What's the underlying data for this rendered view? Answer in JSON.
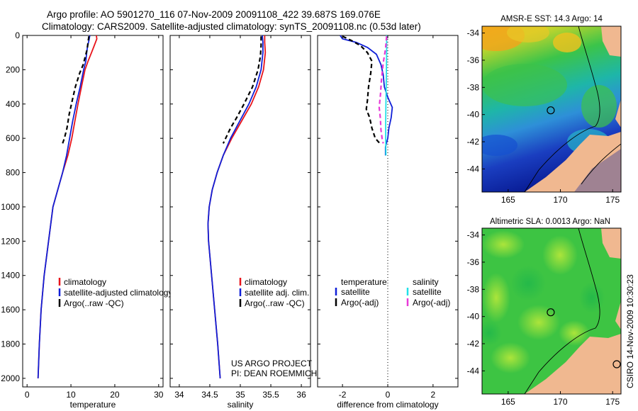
{
  "header": {
    "line1": "Argo profile: AO 5901270_116 07-Nov-2009 20091108_422 39.687S 169.076E",
    "line2": "Climatology: CARS2009. Satellite-adjusted climatology: synTS_20091108.nc (0.53d later)"
  },
  "credits": {
    "project": "US ARGO PROJECT",
    "pi": "PI: DEAN ROEMMICH",
    "timestamp": "CSIRO 14-Nov-2009 10:30:23"
  },
  "chart_data": [
    {
      "type": "line",
      "name": "temperature-profile",
      "xlabel": "temperature",
      "ylabel": "",
      "xlim": [
        -1,
        31
      ],
      "ylim": [
        2050,
        0
      ],
      "xticks": [
        "0",
        "10",
        "20",
        "30"
      ],
      "xtick_values": [
        0,
        10,
        20,
        30
      ],
      "yticks": [
        "0",
        "200",
        "400",
        "600",
        "800",
        "1000",
        "1200",
        "1400",
        "1600",
        "1800",
        "2000"
      ],
      "ytick_values": [
        0,
        200,
        400,
        600,
        800,
        1000,
        1200,
        1400,
        1600,
        1800,
        2000
      ],
      "legend": [
        "climatology",
        "satellite-adjusted climatology",
        "Argo(..raw -QC)"
      ],
      "series": [
        {
          "name": "climatology",
          "color": "#e8141b",
          "dash": false,
          "points": [
            [
              15.8,
              0
            ],
            [
              15.9,
              20
            ],
            [
              15.3,
              60
            ],
            [
              14.7,
              100
            ],
            [
              13.9,
              150
            ],
            [
              13.2,
              200
            ],
            [
              12.4,
              300
            ],
            [
              11.6,
              400
            ],
            [
              10.9,
              500
            ],
            [
              10.2,
              600
            ],
            [
              9.3,
              700
            ],
            [
              8.1,
              800
            ],
            [
              7.0,
              900
            ],
            [
              5.9,
              1000
            ],
            [
              4.9,
              1200
            ],
            [
              3.9,
              1400
            ],
            [
              3.2,
              1600
            ],
            [
              2.8,
              1800
            ],
            [
              2.5,
              2000
            ]
          ]
        },
        {
          "name": "satellite-adjusted climatology",
          "color": "#1020d8",
          "dash": false,
          "points": [
            [
              14.3,
              0
            ],
            [
              14.1,
              30
            ],
            [
              13.8,
              60
            ],
            [
              13.6,
              100
            ],
            [
              13.4,
              150
            ],
            [
              12.9,
              200
            ],
            [
              12.1,
              300
            ],
            [
              11.2,
              400
            ],
            [
              10.4,
              500
            ],
            [
              9.7,
              600
            ],
            [
              9.0,
              700
            ],
            [
              8.1,
              800
            ],
            [
              7.0,
              900
            ],
            [
              5.9,
              1000
            ],
            [
              4.9,
              1200
            ],
            [
              3.9,
              1400
            ],
            [
              3.2,
              1600
            ],
            [
              2.8,
              1800
            ],
            [
              2.5,
              2000
            ]
          ]
        },
        {
          "name": "Argo(..raw -QC)",
          "color": "#000000",
          "dash": true,
          "points": [
            [
              14.1,
              5
            ],
            [
              13.9,
              40
            ],
            [
              13.7,
              80
            ],
            [
              13.3,
              120
            ],
            [
              12.8,
              170
            ],
            [
              12.0,
              220
            ],
            [
              11.0,
              300
            ],
            [
              10.3,
              380
            ],
            [
              9.6,
              460
            ],
            [
              9.1,
              540
            ],
            [
              8.5,
              600
            ],
            [
              8.1,
              630
            ]
          ]
        }
      ]
    },
    {
      "type": "line",
      "name": "salinity-profile",
      "xlabel": "salinity",
      "xlim": [
        33.85,
        36.15
      ],
      "ylim": [
        2050,
        0
      ],
      "xticks": [
        "34",
        "34.5",
        "35",
        "35.5",
        "36"
      ],
      "xtick_values": [
        34,
        34.5,
        35,
        35.5,
        36
      ],
      "legend": [
        "climatology",
        "satellite adj. clim.",
        "Argo(..raw -QC)"
      ],
      "series": [
        {
          "name": "climatology",
          "color": "#e8141b",
          "dash": false,
          "points": [
            [
              35.4,
              0
            ],
            [
              35.4,
              40
            ],
            [
              35.41,
              100
            ],
            [
              35.38,
              200
            ],
            [
              35.3,
              300
            ],
            [
              35.18,
              400
            ],
            [
              35.02,
              500
            ],
            [
              34.86,
              600
            ],
            [
              34.72,
              700
            ],
            [
              34.62,
              800
            ],
            [
              34.54,
              900
            ],
            [
              34.49,
              1000
            ],
            [
              34.47,
              1100
            ],
            [
              34.48,
              1200
            ],
            [
              34.53,
              1400
            ],
            [
              34.58,
              1600
            ],
            [
              34.63,
              1800
            ],
            [
              34.67,
              2000
            ]
          ]
        },
        {
          "name": "satellite adj. clim.",
          "color": "#1020d8",
          "dash": false,
          "points": [
            [
              35.36,
              0
            ],
            [
              35.37,
              40
            ],
            [
              35.37,
              100
            ],
            [
              35.34,
              200
            ],
            [
              35.26,
              300
            ],
            [
              35.14,
              400
            ],
            [
              34.99,
              500
            ],
            [
              34.84,
              600
            ],
            [
              34.72,
              700
            ],
            [
              34.62,
              800
            ],
            [
              34.54,
              900
            ],
            [
              34.49,
              1000
            ],
            [
              34.47,
              1100
            ],
            [
              34.48,
              1200
            ],
            [
              34.53,
              1400
            ],
            [
              34.58,
              1600
            ],
            [
              34.63,
              1800
            ],
            [
              34.67,
              2000
            ]
          ]
        },
        {
          "name": "Argo(..raw -QC)",
          "color": "#000000",
          "dash": true,
          "points": [
            [
              35.34,
              5
            ],
            [
              35.34,
              60
            ],
            [
              35.33,
              120
            ],
            [
              35.29,
              200
            ],
            [
              35.2,
              300
            ],
            [
              35.06,
              400
            ],
            [
              34.94,
              480
            ],
            [
              34.84,
              540
            ],
            [
              34.76,
              600
            ],
            [
              34.72,
              630
            ]
          ]
        }
      ]
    },
    {
      "type": "line",
      "name": "difference-from-climatology",
      "xlabel": "difference from climatology",
      "xlim": [
        -3.1,
        3.1
      ],
      "ylim": [
        2050,
        0
      ],
      "xticks": [
        "-2",
        "0",
        "2"
      ],
      "xtick_values": [
        -2,
        0,
        2
      ],
      "legend_groups": [
        {
          "heading": "temperature",
          "items": [
            "satellite",
            "Argo(-adj)"
          ]
        },
        {
          "heading": "salinity",
          "items": [
            "satellite",
            "Argo(-adj)"
          ]
        }
      ],
      "series": [
        {
          "name": "temperature satellite",
          "color": "#1020d8",
          "dash": false,
          "points": [
            [
              -2.1,
              0
            ],
            [
              -2.0,
              20
            ],
            [
              -1.4,
              40
            ],
            [
              -0.9,
              70
            ],
            [
              -0.5,
              110
            ],
            [
              -0.3,
              170
            ],
            [
              -0.2,
              230
            ],
            [
              -0.15,
              300
            ],
            [
              0.0,
              360
            ],
            [
              0.2,
              420
            ],
            [
              0.15,
              480
            ],
            [
              0.05,
              540
            ],
            [
              0.0,
              600
            ],
            [
              -0.1,
              650
            ],
            [
              -0.1,
              700
            ]
          ]
        },
        {
          "name": "temperature Argo(-adj)",
          "color": "#000000",
          "dash": true,
          "points": [
            [
              -2.0,
              5
            ],
            [
              -1.6,
              30
            ],
            [
              -1.2,
              60
            ],
            [
              -0.9,
              100
            ],
            [
              -0.7,
              150
            ],
            [
              -0.75,
              220
            ],
            [
              -0.85,
              300
            ],
            [
              -0.9,
              380
            ],
            [
              -0.95,
              430
            ],
            [
              -0.8,
              480
            ],
            [
              -0.7,
              540
            ],
            [
              -0.55,
              600
            ],
            [
              -0.35,
              630
            ]
          ]
        },
        {
          "name": "salinity satellite",
          "color": "#22e0e8",
          "dash": false,
          "points": [
            [
              -0.05,
              0
            ],
            [
              -0.05,
              100
            ],
            [
              -0.06,
              200
            ],
            [
              -0.07,
              300
            ],
            [
              -0.08,
              400
            ],
            [
              -0.09,
              500
            ],
            [
              -0.09,
              600
            ],
            [
              -0.08,
              700
            ]
          ]
        },
        {
          "name": "salinity Argo(-adj)",
          "color": "#e83ad8",
          "dash": true,
          "points": [
            [
              -0.05,
              5
            ],
            [
              -0.1,
              80
            ],
            [
              -0.2,
              160
            ],
            [
              -0.28,
              260
            ],
            [
              -0.32,
              340
            ],
            [
              -0.38,
              420
            ],
            [
              -0.33,
              480
            ],
            [
              -0.3,
              550
            ],
            [
              -0.25,
              600
            ],
            [
              -0.2,
              630
            ]
          ]
        }
      ]
    },
    {
      "type": "heatmap",
      "name": "amsr-sst-map",
      "title": "AMSR-E SST: 14.3 Argo: 14",
      "xlim": [
        162.5,
        175.8
      ],
      "ylim": [
        -45.7,
        -33.5
      ],
      "xticks": [
        "165",
        "170",
        "175"
      ],
      "xtick_values": [
        165,
        170,
        175
      ],
      "yticks": [
        "-34",
        "-36",
        "-38",
        "-40",
        "-42",
        "-44"
      ],
      "ytick_values": [
        -34,
        -36,
        -38,
        -40,
        -42,
        -44
      ],
      "marker": {
        "lon": 169.076,
        "lat": -39.687
      }
    },
    {
      "type": "heatmap",
      "name": "altimetric-sla-map",
      "title": "Altimetric SLA: 0.0013 Argo: NaN",
      "xlim": [
        162.5,
        175.8
      ],
      "ylim": [
        -45.7,
        -33.5
      ],
      "xticks": [
        "165",
        "170",
        "175"
      ],
      "xtick_values": [
        165,
        170,
        175
      ],
      "yticks": [
        "-34",
        "-36",
        "-38",
        "-40",
        "-42",
        "-44"
      ],
      "ytick_values": [
        -34,
        -36,
        -38,
        -40,
        -42,
        -44
      ],
      "marker": {
        "lon": 169.076,
        "lat": -39.687
      }
    }
  ]
}
